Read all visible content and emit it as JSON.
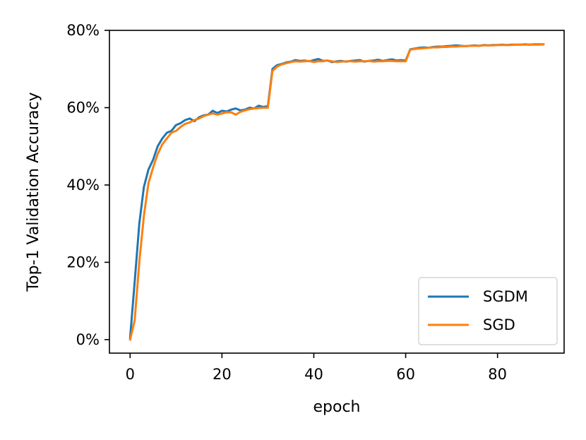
{
  "chart_data": {
    "type": "line",
    "xlabel": "epoch",
    "ylabel": "Top-1 Validation Accuracy",
    "xlim": [
      -4.5,
      94.5
    ],
    "ylim": [
      -3.5,
      80
    ],
    "xticks": [
      0,
      20,
      40,
      60,
      80
    ],
    "yticks": [
      0,
      20,
      40,
      60,
      80
    ],
    "ytick_labels": [
      "0%",
      "20%",
      "40%",
      "60%",
      "80%"
    ],
    "grid": false,
    "legend_position": "lower-right",
    "series": [
      {
        "name": "SGDM",
        "color": "#1f77b4",
        "x": [
          0,
          1,
          2,
          3,
          4,
          5,
          6,
          7,
          8,
          9,
          10,
          11,
          12,
          13,
          14,
          15,
          16,
          17,
          18,
          19,
          20,
          21,
          22,
          23,
          24,
          25,
          26,
          27,
          28,
          29,
          30,
          31,
          32,
          33,
          34,
          35,
          36,
          37,
          38,
          39,
          40,
          41,
          42,
          43,
          44,
          45,
          46,
          47,
          48,
          49,
          50,
          51,
          52,
          53,
          54,
          55,
          56,
          57,
          58,
          59,
          60,
          61,
          62,
          63,
          64,
          65,
          66,
          67,
          68,
          69,
          70,
          71,
          72,
          73,
          74,
          75,
          76,
          77,
          78,
          79,
          80,
          81,
          82,
          83,
          84,
          85,
          86,
          87,
          88,
          89,
          90
        ],
        "y": [
          0.5,
          15,
          30,
          39.5,
          44,
          46.5,
          50,
          52,
          53.5,
          54,
          55.5,
          56,
          56.8,
          57.2,
          56.5,
          57.5,
          58,
          58.2,
          59.2,
          58.6,
          59.2,
          59,
          59.5,
          59.8,
          59.3,
          59.5,
          60,
          59.8,
          60.5,
          60.2,
          60.4,
          70,
          71,
          71.3,
          71.7,
          71.9,
          72.3,
          72.1,
          72.2,
          72,
          72.3,
          72.6,
          72.1,
          72.2,
          71.8,
          72,
          72.1,
          71.9,
          72.1,
          72.2,
          72.3,
          71.9,
          72.1,
          72.2,
          72.4,
          72.1,
          72.3,
          72.5,
          72.2,
          72.3,
          72.2,
          75.1,
          75.3,
          75.5,
          75.6,
          75.5,
          75.7,
          75.8,
          75.8,
          75.9,
          76,
          76.1,
          76,
          75.9,
          76,
          76.1,
          76,
          76.2,
          76.1,
          76.2,
          76.2,
          76.3,
          76.2,
          76.3,
          76.3,
          76.3,
          76.4,
          76.3,
          76.4,
          76.4,
          76.4
        ]
      },
      {
        "name": "SGD",
        "color": "#ff7f0e",
        "x": [
          0,
          1,
          2,
          3,
          4,
          5,
          6,
          7,
          8,
          9,
          10,
          11,
          12,
          13,
          14,
          15,
          16,
          17,
          18,
          19,
          20,
          21,
          22,
          23,
          24,
          25,
          26,
          27,
          28,
          29,
          30,
          31,
          32,
          33,
          34,
          35,
          36,
          37,
          38,
          39,
          40,
          41,
          42,
          43,
          44,
          45,
          46,
          47,
          48,
          49,
          50,
          51,
          52,
          53,
          54,
          55,
          56,
          57,
          58,
          59,
          60,
          61,
          62,
          63,
          64,
          65,
          66,
          67,
          68,
          69,
          70,
          71,
          72,
          73,
          74,
          75,
          76,
          77,
          78,
          79,
          80,
          81,
          82,
          83,
          84,
          85,
          86,
          87,
          88,
          89,
          90
        ],
        "y": [
          0,
          5,
          20,
          32,
          40.5,
          44.5,
          48,
          50.5,
          52,
          53.5,
          54,
          55,
          55.8,
          56.2,
          56.8,
          57.2,
          57.8,
          58.2,
          58.5,
          58.2,
          58.5,
          58.8,
          58.8,
          58.2,
          58.9,
          59.3,
          59.6,
          59.8,
          59.9,
          60,
          60,
          69.5,
          70.6,
          71.2,
          71.5,
          71.8,
          72,
          71.9,
          72,
          72.1,
          71.8,
          72,
          72,
          72.2,
          72,
          71.8,
          71.9,
          72,
          72,
          71.9,
          72,
          72,
          72.1,
          71.9,
          72,
          72,
          72.1,
          72.1,
          72,
          72,
          72,
          75,
          75.2,
          75.3,
          75.4,
          75.5,
          75.6,
          75.6,
          75.7,
          75.7,
          75.8,
          75.8,
          75.9,
          75.9,
          76,
          76,
          76,
          76.1,
          76.1,
          76.1,
          76.2,
          76.2,
          76.2,
          76.2,
          76.3,
          76.3,
          76.3,
          76.3,
          76.3,
          76.3,
          76.4
        ]
      }
    ]
  }
}
